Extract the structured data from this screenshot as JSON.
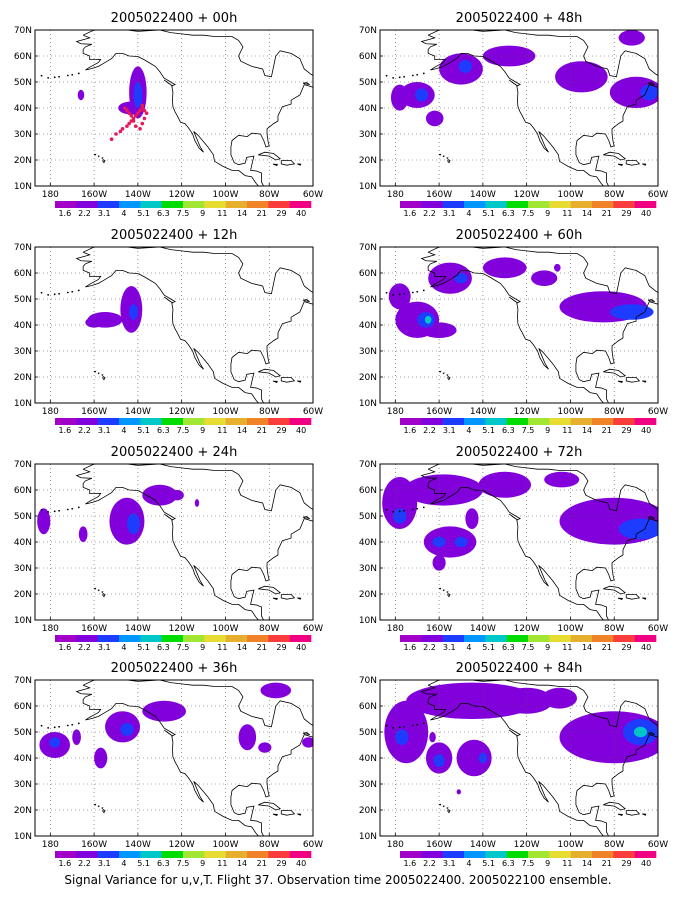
{
  "caption": "Signal Variance for u,v,T. Flight 37. Observation time 2005022400. 2005022100 ensemble.",
  "colorbar": {
    "labels": [
      "1.6",
      "2.2",
      "3.1",
      "4",
      "5.1",
      "6.3",
      "7.5",
      "9",
      "11",
      "14",
      "21",
      "29",
      "40"
    ],
    "colors": [
      "#a000c8",
      "#8200dc",
      "#1e3cff",
      "#0096ff",
      "#00c8c8",
      "#00dc00",
      "#a0e632",
      "#e6dc32",
      "#e6af2d",
      "#f08228",
      "#fa3c3c",
      "#f00082"
    ]
  },
  "axes": {
    "lat_labels": [
      "10N",
      "20N",
      "30N",
      "40N",
      "50N",
      "60N",
      "70N"
    ],
    "lon_labels": [
      "180",
      "160W",
      "140W",
      "120W",
      "100W",
      "80W",
      "60W"
    ]
  },
  "panels": [
    {
      "title": "2005022400 + 00h",
      "blobs": [
        {
          "lon": -140,
          "lat": 46,
          "rx": 4,
          "ry": 10,
          "l": 1
        },
        {
          "lon": -140,
          "lat": 45,
          "rx": 2,
          "ry": 5,
          "l": 2
        },
        {
          "lon": -143,
          "lat": 40,
          "rx": 6,
          "ry": 2.5,
          "l": 1
        },
        {
          "lon": -166,
          "lat": 45,
          "rx": 1.5,
          "ry": 2,
          "l": 1
        }
      ],
      "track": [
        [
          -138,
          40
        ],
        [
          -139,
          39
        ],
        [
          -140,
          38
        ],
        [
          -141,
          37
        ],
        [
          -142,
          36
        ],
        [
          -143,
          35
        ],
        [
          -144,
          34
        ],
        [
          -145,
          33
        ],
        [
          -147,
          32
        ],
        [
          -148,
          31
        ],
        [
          -150,
          30
        ],
        [
          -152,
          28
        ],
        [
          -146,
          40
        ],
        [
          -145,
          39
        ],
        [
          -144,
          38
        ],
        [
          -143,
          37
        ],
        [
          -142,
          35
        ],
        [
          -141,
          33
        ],
        [
          -139,
          32
        ],
        [
          -138,
          34
        ],
        [
          -137,
          36
        ],
        [
          -136,
          38
        ],
        [
          -137,
          39
        ],
        [
          -138,
          41
        ]
      ]
    },
    {
      "title": "2005022400 + 48h",
      "blobs": [
        {
          "lon": -170,
          "lat": 45,
          "rx": 8,
          "ry": 5,
          "l": 1
        },
        {
          "lon": -168,
          "lat": 45,
          "rx": 3,
          "ry": 2.5,
          "l": 2
        },
        {
          "lon": -162,
          "lat": 36,
          "rx": 4,
          "ry": 3,
          "l": 1
        },
        {
          "lon": -150,
          "lat": 55,
          "rx": 10,
          "ry": 6,
          "l": 1
        },
        {
          "lon": -148,
          "lat": 56,
          "rx": 3,
          "ry": 2.5,
          "l": 2
        },
        {
          "lon": -128,
          "lat": 60,
          "rx": 12,
          "ry": 4,
          "l": 1
        },
        {
          "lon": -95,
          "lat": 52,
          "rx": 12,
          "ry": 6,
          "l": 1
        },
        {
          "lon": -70,
          "lat": 46,
          "rx": 12,
          "ry": 6,
          "l": 1
        },
        {
          "lon": -72,
          "lat": 67,
          "rx": 6,
          "ry": 3,
          "l": 1
        },
        {
          "lon": -64,
          "lat": 46,
          "rx": 4,
          "ry": 3,
          "l": 2
        },
        {
          "lon": -178,
          "lat": 44,
          "rx": 4,
          "ry": 5,
          "l": 1
        }
      ]
    },
    {
      "title": "2005022400 + 12h",
      "blobs": [
        {
          "lon": -143,
          "lat": 46,
          "rx": 5,
          "ry": 9,
          "l": 1
        },
        {
          "lon": -142,
          "lat": 45,
          "rx": 2,
          "ry": 3,
          "l": 2
        },
        {
          "lon": -155,
          "lat": 42,
          "rx": 8,
          "ry": 3,
          "l": 1
        },
        {
          "lon": -160,
          "lat": 41,
          "rx": 4,
          "ry": 2,
          "l": 1
        }
      ]
    },
    {
      "title": "2005022400 + 60h",
      "blobs": [
        {
          "lon": -170,
          "lat": 42,
          "rx": 10,
          "ry": 7,
          "l": 1
        },
        {
          "lon": -166,
          "lat": 42,
          "rx": 4,
          "ry": 3,
          "l": 2
        },
        {
          "lon": -165,
          "lat": 42,
          "rx": 1.5,
          "ry": 1.5,
          "l": 3
        },
        {
          "lon": -178,
          "lat": 51,
          "rx": 5,
          "ry": 5,
          "l": 1
        },
        {
          "lon": -155,
          "lat": 58,
          "rx": 10,
          "ry": 6,
          "l": 1
        },
        {
          "lon": -150,
          "lat": 58,
          "rx": 3,
          "ry": 2,
          "l": 2
        },
        {
          "lon": -130,
          "lat": 62,
          "rx": 10,
          "ry": 4,
          "l": 1
        },
        {
          "lon": -112,
          "lat": 58,
          "rx": 6,
          "ry": 3,
          "l": 1
        },
        {
          "lon": -85,
          "lat": 47,
          "rx": 20,
          "ry": 6,
          "l": 1
        },
        {
          "lon": -72,
          "lat": 45,
          "rx": 10,
          "ry": 3,
          "l": 2
        },
        {
          "lon": -106,
          "lat": 62,
          "rx": 1.5,
          "ry": 1.5,
          "l": 1
        },
        {
          "lon": -160,
          "lat": 38,
          "rx": 8,
          "ry": 3,
          "l": 1
        }
      ]
    },
    {
      "title": "2005022400 + 24h",
      "blobs": [
        {
          "lon": -145,
          "lat": 48,
          "rx": 8,
          "ry": 9,
          "l": 1
        },
        {
          "lon": -142,
          "lat": 47,
          "rx": 3,
          "ry": 4,
          "l": 2
        },
        {
          "lon": -130,
          "lat": 58,
          "rx": 8,
          "ry": 4,
          "l": 1
        },
        {
          "lon": -183,
          "lat": 48,
          "rx": 3,
          "ry": 5,
          "l": 1
        },
        {
          "lon": -165,
          "lat": 43,
          "rx": 2,
          "ry": 3,
          "l": 1
        },
        {
          "lon": -113,
          "lat": 55,
          "rx": 1,
          "ry": 1.5,
          "l": 1
        },
        {
          "lon": -122,
          "lat": 58,
          "rx": 3,
          "ry": 2,
          "l": 1
        }
      ]
    },
    {
      "title": "2005022400 + 72h",
      "blobs": [
        {
          "lon": -178,
          "lat": 55,
          "rx": 8,
          "ry": 10,
          "l": 1
        },
        {
          "lon": -178,
          "lat": 50,
          "rx": 3,
          "ry": 3,
          "l": 2
        },
        {
          "lon": -158,
          "lat": 60,
          "rx": 18,
          "ry": 6,
          "l": 1
        },
        {
          "lon": -130,
          "lat": 62,
          "rx": 12,
          "ry": 5,
          "l": 1
        },
        {
          "lon": -155,
          "lat": 40,
          "rx": 12,
          "ry": 6,
          "l": 1
        },
        {
          "lon": -160,
          "lat": 40,
          "rx": 3,
          "ry": 2,
          "l": 2
        },
        {
          "lon": -150,
          "lat": 40,
          "rx": 3,
          "ry": 2,
          "l": 2
        },
        {
          "lon": -160,
          "lat": 32,
          "rx": 3,
          "ry": 3,
          "l": 1
        },
        {
          "lon": -80,
          "lat": 48,
          "rx": 25,
          "ry": 9,
          "l": 1
        },
        {
          "lon": -68,
          "lat": 45,
          "rx": 10,
          "ry": 4,
          "l": 2
        },
        {
          "lon": -104,
          "lat": 64,
          "rx": 8,
          "ry": 3,
          "l": 1
        },
        {
          "lon": -145,
          "lat": 49,
          "rx": 3,
          "ry": 4,
          "l": 1
        }
      ]
    },
    {
      "title": "2005022400 + 36h",
      "blobs": [
        {
          "lon": -178,
          "lat": 45,
          "rx": 7,
          "ry": 5,
          "l": 1
        },
        {
          "lon": -178,
          "lat": 46,
          "rx": 2.5,
          "ry": 2,
          "l": 2
        },
        {
          "lon": -168,
          "lat": 48,
          "rx": 2,
          "ry": 3,
          "l": 1
        },
        {
          "lon": -147,
          "lat": 52,
          "rx": 8,
          "ry": 6,
          "l": 1
        },
        {
          "lon": -145,
          "lat": 51,
          "rx": 3,
          "ry": 2.5,
          "l": 2
        },
        {
          "lon": -157,
          "lat": 40,
          "rx": 3,
          "ry": 4,
          "l": 1
        },
        {
          "lon": -128,
          "lat": 58,
          "rx": 10,
          "ry": 4,
          "l": 1
        },
        {
          "lon": -90,
          "lat": 48,
          "rx": 4,
          "ry": 5,
          "l": 1
        },
        {
          "lon": -77,
          "lat": 66,
          "rx": 7,
          "ry": 3,
          "l": 1
        },
        {
          "lon": -62,
          "lat": 46,
          "rx": 3,
          "ry": 2,
          "l": 1
        },
        {
          "lon": -82,
          "lat": 44,
          "rx": 3,
          "ry": 2,
          "l": 1
        }
      ]
    },
    {
      "title": "2005022400 + 84h",
      "blobs": [
        {
          "lon": -175,
          "lat": 50,
          "rx": 10,
          "ry": 12,
          "l": 1
        },
        {
          "lon": -177,
          "lat": 48,
          "rx": 3,
          "ry": 3,
          "l": 2
        },
        {
          "lon": -145,
          "lat": 62,
          "rx": 30,
          "ry": 7,
          "l": 1
        },
        {
          "lon": -120,
          "lat": 62,
          "rx": 12,
          "ry": 5,
          "l": 1
        },
        {
          "lon": -160,
          "lat": 40,
          "rx": 6,
          "ry": 6,
          "l": 1
        },
        {
          "lon": -160,
          "lat": 39,
          "rx": 2.5,
          "ry": 2.5,
          "l": 2
        },
        {
          "lon": -144,
          "lat": 40,
          "rx": 8,
          "ry": 7,
          "l": 1
        },
        {
          "lon": -140,
          "lat": 40,
          "rx": 2,
          "ry": 2,
          "l": 2
        },
        {
          "lon": -80,
          "lat": 48,
          "rx": 25,
          "ry": 10,
          "l": 1
        },
        {
          "lon": -68,
          "lat": 50,
          "rx": 8,
          "ry": 5,
          "l": 2
        },
        {
          "lon": -68,
          "lat": 50,
          "rx": 3,
          "ry": 2,
          "l": 3
        },
        {
          "lon": -105,
          "lat": 63,
          "rx": 8,
          "ry": 4,
          "l": 1
        },
        {
          "lon": -163,
          "lat": 48,
          "rx": 1.5,
          "ry": 2,
          "l": 1
        },
        {
          "lon": -151,
          "lat": 27,
          "rx": 1,
          "ry": 1,
          "l": 1
        }
      ]
    }
  ]
}
